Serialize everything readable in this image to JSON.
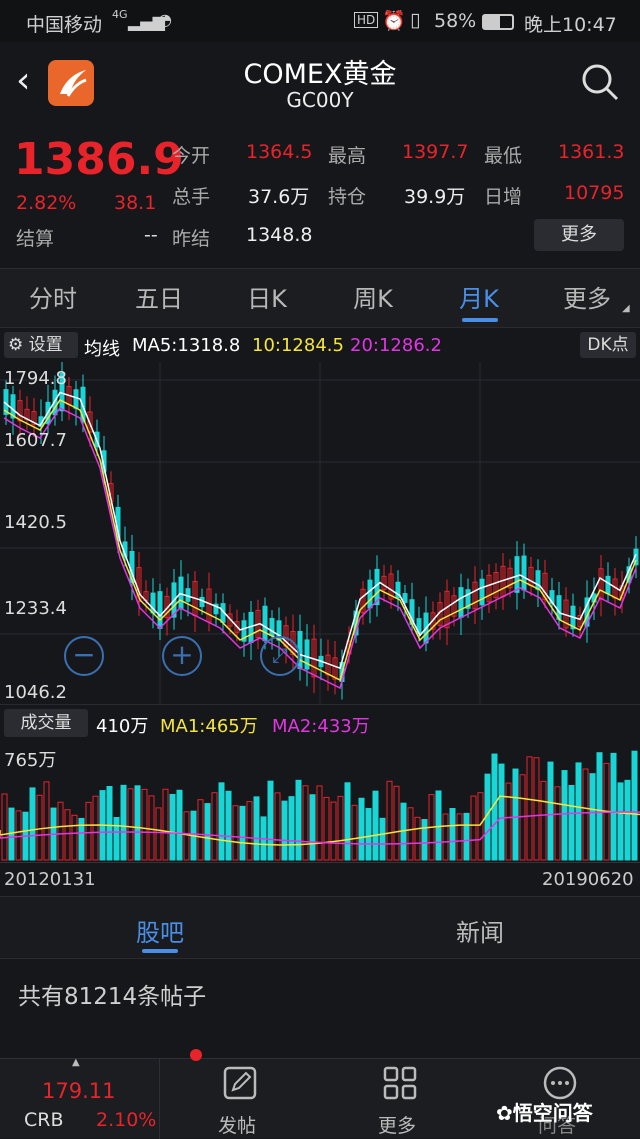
{
  "statusbar": {
    "carrier": "中国移动",
    "network": "4G",
    "battery": "58%",
    "time": "晚上10:47",
    "hd": "HD"
  },
  "header": {
    "title": "COMEX黄金",
    "code": "GC00Y"
  },
  "quote": {
    "price": "1386.9",
    "change_pct": "2.82%",
    "change": "38.1",
    "settle_label": "结算",
    "settle_value": "--",
    "fields": [
      {
        "label": "今开",
        "value": "1364.5"
      },
      {
        "label": "最高",
        "value": "1397.7"
      },
      {
        "label": "最低",
        "value": "1361.3"
      },
      {
        "label": "总手",
        "value": "37.6万"
      },
      {
        "label": "持仓",
        "value": "39.9万"
      },
      {
        "label": "日增",
        "value": "10795"
      },
      {
        "label": "昨结",
        "value": "1348.8"
      }
    ],
    "more_label": "更多"
  },
  "tabs": [
    "分时",
    "五日",
    "日K",
    "周K",
    "月K",
    "更多"
  ],
  "active_tab": "月K",
  "ma": {
    "settings_label": "设置",
    "label": "均线",
    "ma5": "MA5:1318.8",
    "ma10": "10:1284.5",
    "ma20": "20:1286.2",
    "dk_label": "DK点"
  },
  "price_axis": [
    "1794.8",
    "1607.7",
    "1420.5",
    "1233.4",
    "1046.2"
  ],
  "volume": {
    "label": "成交量",
    "value": "410万",
    "ma1": "MA1:465万",
    "ma2": "MA2:433万",
    "axis_max": "765万"
  },
  "dates": {
    "start": "20120131",
    "end": "20190620"
  },
  "section_tabs": [
    "股吧",
    "新闻"
  ],
  "post_count": "共有81214条帖子",
  "bottom": {
    "index_value": "179.11",
    "index_name": "CRB",
    "index_pct": "2.10%",
    "post_label": "发帖",
    "more_label": "更多",
    "qa_label": "问答",
    "watermark": "悟空问答"
  },
  "colors": {
    "up": "#e8232a",
    "down": "#18d6d6",
    "ma5": "#ffffff",
    "ma10": "#f5e53a",
    "ma20": "#e236e2",
    "accent": "#4a8fe7"
  }
}
